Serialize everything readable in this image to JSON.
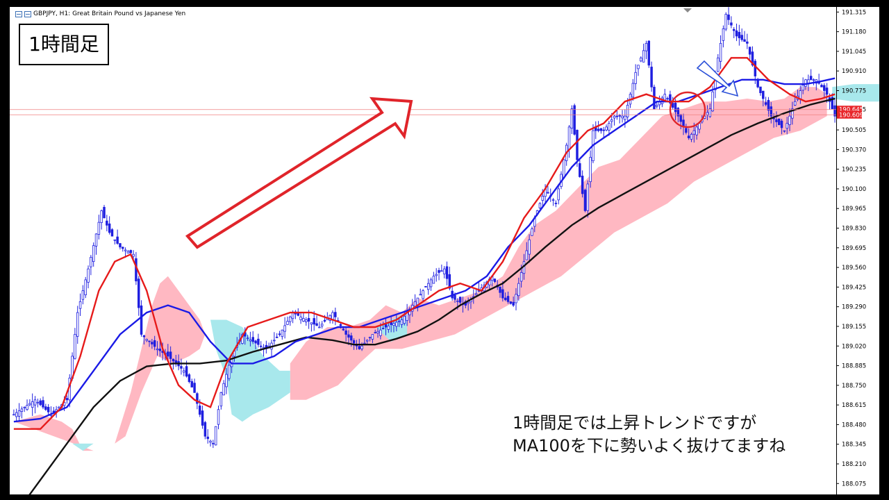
{
  "header": {
    "symbol_title": "GBPJPY, H1:  Great Britain Pound vs Japanese Yen"
  },
  "timeframe_label": "1時間足",
  "caption": {
    "line1": "1時間足では上昇トレンドですが",
    "line2": "MA100を下に勢いよく抜けてますね"
  },
  "chart_data": {
    "type": "candlestick",
    "title": "GBPJPY, H1:  Great Britain Pound vs Japanese Yen",
    "ylim": [
      188.0,
      191.35
    ],
    "y_ticks": [
      "191.315",
      "191.180",
      "191.045",
      "190.910",
      "190.775",
      "190.645",
      "190.505",
      "190.370",
      "190.235",
      "190.100",
      "189.965",
      "189.830",
      "189.695",
      "189.560",
      "189.425",
      "189.290",
      "189.155",
      "189.020",
      "188.885",
      "188.750",
      "188.615",
      "188.480",
      "188.345",
      "188.210",
      "188.075"
    ],
    "price_labels": [
      {
        "text": "190.645",
        "value": 190.645,
        "color": "#e8262a"
      },
      {
        "text": "190.609",
        "value": 190.609,
        "color": "#e8262a"
      }
    ],
    "candle_color_up": "#1f1fe0",
    "candle_color_down": "#1f1fe0",
    "price_keypoints": [
      [
        0,
        188.55
      ],
      [
        8,
        188.65
      ],
      [
        14,
        188.55
      ],
      [
        20,
        188.65
      ],
      [
        24,
        189.25
      ],
      [
        28,
        189.55
      ],
      [
        33,
        189.95
      ],
      [
        36,
        189.8
      ],
      [
        40,
        189.7
      ],
      [
        45,
        189.65
      ],
      [
        48,
        189.1
      ],
      [
        54,
        189.0
      ],
      [
        58,
        188.95
      ],
      [
        64,
        188.85
      ],
      [
        68,
        188.7
      ],
      [
        72,
        188.4
      ],
      [
        75,
        188.35
      ],
      [
        78,
        188.7
      ],
      [
        82,
        188.95
      ],
      [
        86,
        189.1
      ],
      [
        90,
        189.05
      ],
      [
        95,
        189.0
      ],
      [
        100,
        189.1
      ],
      [
        105,
        189.25
      ],
      [
        110,
        189.2
      ],
      [
        115,
        189.15
      ],
      [
        120,
        189.25
      ],
      [
        125,
        189.1
      ],
      [
        130,
        189.0
      ],
      [
        135,
        189.1
      ],
      [
        140,
        189.15
      ],
      [
        146,
        189.2
      ],
      [
        152,
        189.35
      ],
      [
        158,
        189.5
      ],
      [
        162,
        189.55
      ],
      [
        165,
        189.35
      ],
      [
        170,
        189.3
      ],
      [
        175,
        189.4
      ],
      [
        180,
        189.5
      ],
      [
        184,
        189.35
      ],
      [
        188,
        189.3
      ],
      [
        192,
        189.6
      ],
      [
        196,
        189.9
      ],
      [
        200,
        190.1
      ],
      [
        204,
        190.0
      ],
      [
        208,
        190.4
      ],
      [
        210,
        190.65
      ],
      [
        212,
        190.3
      ],
      [
        215,
        189.95
      ],
      [
        218,
        190.5
      ],
      [
        222,
        190.5
      ],
      [
        226,
        190.6
      ],
      [
        230,
        190.6
      ],
      [
        234,
        190.9
      ],
      [
        238,
        191.1
      ],
      [
        241,
        190.65
      ],
      [
        245,
        190.75
      ],
      [
        250,
        190.6
      ],
      [
        254,
        190.45
      ],
      [
        258,
        190.55
      ],
      [
        262,
        190.65
      ],
      [
        265,
        191.0
      ],
      [
        268,
        191.3
      ],
      [
        272,
        191.15
      ],
      [
        276,
        191.1
      ],
      [
        280,
        190.8
      ],
      [
        285,
        190.6
      ],
      [
        290,
        190.5
      ],
      [
        294,
        190.7
      ],
      [
        298,
        190.85
      ],
      [
        302,
        190.85
      ],
      [
        306,
        190.75
      ],
      [
        309,
        190.6
      ]
    ],
    "ma_red": [
      [
        0,
        188.45
      ],
      [
        10,
        188.45
      ],
      [
        18,
        188.6
      ],
      [
        25,
        188.95
      ],
      [
        32,
        189.4
      ],
      [
        38,
        189.6
      ],
      [
        44,
        189.65
      ],
      [
        50,
        189.4
      ],
      [
        56,
        189.0
      ],
      [
        62,
        188.75
      ],
      [
        68,
        188.65
      ],
      [
        74,
        188.6
      ],
      [
        80,
        188.9
      ],
      [
        88,
        189.15
      ],
      [
        96,
        189.2
      ],
      [
        104,
        189.25
      ],
      [
        112,
        189.25
      ],
      [
        120,
        189.2
      ],
      [
        128,
        189.15
      ],
      [
        136,
        189.15
      ],
      [
        144,
        189.2
      ],
      [
        152,
        189.3
      ],
      [
        160,
        189.4
      ],
      [
        168,
        189.45
      ],
      [
        176,
        189.4
      ],
      [
        184,
        189.6
      ],
      [
        192,
        189.9
      ],
      [
        200,
        190.1
      ],
      [
        208,
        190.35
      ],
      [
        216,
        190.5
      ],
      [
        222,
        190.55
      ],
      [
        230,
        190.7
      ],
      [
        238,
        190.75
      ],
      [
        246,
        190.7
      ],
      [
        254,
        190.7
      ],
      [
        262,
        190.8
      ],
      [
        270,
        191.0
      ],
      [
        276,
        191.0
      ],
      [
        284,
        190.85
      ],
      [
        292,
        190.75
      ],
      [
        298,
        190.7
      ],
      [
        304,
        190.72
      ],
      [
        309,
        190.75
      ]
    ],
    "ma_blue": [
      [
        0,
        188.5
      ],
      [
        10,
        188.52
      ],
      [
        20,
        188.6
      ],
      [
        30,
        188.85
      ],
      [
        40,
        189.1
      ],
      [
        50,
        189.25
      ],
      [
        58,
        189.3
      ],
      [
        66,
        189.25
      ],
      [
        74,
        189.05
      ],
      [
        82,
        188.9
      ],
      [
        90,
        188.9
      ],
      [
        98,
        188.95
      ],
      [
        106,
        189.05
      ],
      [
        114,
        189.1
      ],
      [
        122,
        189.15
      ],
      [
        130,
        189.15
      ],
      [
        138,
        189.2
      ],
      [
        146,
        189.25
      ],
      [
        154,
        189.3
      ],
      [
        162,
        189.35
      ],
      [
        170,
        189.4
      ],
      [
        178,
        189.5
      ],
      [
        186,
        189.7
      ],
      [
        194,
        189.85
      ],
      [
        202,
        190.05
      ],
      [
        210,
        190.25
      ],
      [
        218,
        190.4
      ],
      [
        226,
        190.5
      ],
      [
        234,
        190.6
      ],
      [
        242,
        190.7
      ],
      [
        250,
        190.7
      ],
      [
        258,
        190.75
      ],
      [
        266,
        190.8
      ],
      [
        274,
        190.85
      ],
      [
        282,
        190.85
      ],
      [
        290,
        190.82
      ],
      [
        298,
        190.82
      ],
      [
        304,
        190.84
      ],
      [
        309,
        190.86
      ]
    ],
    "ma_black_ma100": [
      [
        0,
        187.85
      ],
      [
        10,
        188.1
      ],
      [
        20,
        188.35
      ],
      [
        30,
        188.6
      ],
      [
        40,
        188.78
      ],
      [
        50,
        188.88
      ],
      [
        60,
        188.9
      ],
      [
        70,
        188.9
      ],
      [
        80,
        188.92
      ],
      [
        90,
        188.98
      ],
      [
        100,
        189.03
      ],
      [
        110,
        189.08
      ],
      [
        120,
        189.06
      ],
      [
        128,
        189.03
      ],
      [
        136,
        189.03
      ],
      [
        144,
        189.07
      ],
      [
        152,
        189.12
      ],
      [
        160,
        189.2
      ],
      [
        168,
        189.3
      ],
      [
        176,
        189.38
      ],
      [
        184,
        189.45
      ],
      [
        192,
        189.57
      ],
      [
        200,
        189.7
      ],
      [
        210,
        189.85
      ],
      [
        220,
        189.97
      ],
      [
        230,
        190.07
      ],
      [
        240,
        190.17
      ],
      [
        250,
        190.27
      ],
      [
        260,
        190.37
      ],
      [
        270,
        190.47
      ],
      [
        280,
        190.55
      ],
      [
        290,
        190.62
      ],
      [
        300,
        190.68
      ],
      [
        309,
        190.72
      ]
    ],
    "ichimoku_cloud_pink": [
      [
        [
          0,
          188.5
        ],
        [
          10,
          188.55
        ],
        [
          18,
          188.5
        ],
        [
          22,
          188.45
        ],
        [
          26,
          188.3
        ],
        [
          30,
          188.3
        ]
      ],
      [
        [
          38,
          188.35
        ],
        [
          44,
          188.7
        ],
        [
          48,
          189.0
        ],
        [
          52,
          189.3
        ],
        [
          55,
          189.45
        ],
        [
          58,
          189.5
        ],
        [
          62,
          189.4
        ],
        [
          66,
          189.3
        ],
        [
          70,
          189.2
        ],
        [
          72,
          189.1
        ],
        [
          70,
          189.0
        ],
        [
          66,
          188.95
        ],
        [
          60,
          188.9
        ],
        [
          54,
          188.95
        ],
        [
          48,
          188.7
        ],
        [
          42,
          188.4
        ],
        [
          38,
          188.35
        ]
      ],
      [
        [
          104,
          188.9
        ],
        [
          110,
          189.05
        ],
        [
          118,
          189.15
        ],
        [
          126,
          189.15
        ],
        [
          134,
          189.2
        ],
        [
          140,
          189.3
        ],
        [
          146,
          189.25
        ],
        [
          152,
          189.35
        ],
        [
          160,
          189.3
        ],
        [
          168,
          189.35
        ],
        [
          176,
          189.4
        ],
        [
          184,
          189.5
        ],
        [
          190,
          189.7
        ],
        [
          196,
          189.85
        ],
        [
          204,
          189.95
        ],
        [
          212,
          190.1
        ],
        [
          220,
          190.25
        ],
        [
          228,
          190.3
        ],
        [
          236,
          190.45
        ],
        [
          244,
          190.6
        ],
        [
          252,
          190.65
        ],
        [
          260,
          190.7
        ],
        [
          268,
          190.7
        ],
        [
          276,
          190.72
        ],
        [
          284,
          190.7
        ],
        [
          290,
          190.72
        ],
        [
          296,
          190.8
        ],
        [
          302,
          190.8
        ],
        [
          306,
          190.75
        ],
        [
          306,
          190.6
        ],
        [
          296,
          190.5
        ],
        [
          286,
          190.45
        ],
        [
          276,
          190.35
        ],
        [
          266,
          190.25
        ],
        [
          256,
          190.15
        ],
        [
          246,
          190.0
        ],
        [
          236,
          189.9
        ],
        [
          226,
          189.8
        ],
        [
          216,
          189.65
        ],
        [
          206,
          189.5
        ],
        [
          196,
          189.4
        ],
        [
          186,
          189.3
        ],
        [
          176,
          189.2
        ],
        [
          166,
          189.1
        ],
        [
          156,
          189.05
        ],
        [
          146,
          189.0
        ],
        [
          136,
          189.0
        ],
        [
          130,
          188.9
        ],
        [
          122,
          188.75
        ],
        [
          116,
          188.7
        ],
        [
          110,
          188.65
        ],
        [
          104,
          188.65
        ]
      ]
    ],
    "ichimoku_cloud_cyan": [
      [
        [
          22,
          188.35
        ],
        [
          26,
          188.3
        ],
        [
          30,
          188.35
        ]
      ],
      [
        [
          74,
          189.2
        ],
        [
          80,
          189.2
        ],
        [
          86,
          189.15
        ],
        [
          90,
          189.05
        ],
        [
          94,
          188.95
        ],
        [
          100,
          188.85
        ],
        [
          104,
          188.85
        ],
        [
          104,
          188.7
        ],
        [
          96,
          188.6
        ],
        [
          90,
          188.55
        ],
        [
          86,
          188.5
        ],
        [
          82,
          188.55
        ],
        [
          80,
          188.8
        ],
        [
          76,
          189.0
        ],
        [
          74,
          189.2
        ]
      ],
      [
        [
          136,
          189.15
        ],
        [
          142,
          189.2
        ],
        [
          148,
          189.25
        ],
        [
          148,
          189.1
        ],
        [
          142,
          189.05
        ]
      ],
      [
        [
          308,
          190.8
        ],
        [
          316,
          190.82
        ],
        [
          326,
          190.82
        ],
        [
          332,
          190.85
        ],
        [
          332,
          190.65
        ],
        [
          326,
          190.7
        ],
        [
          316,
          190.7
        ],
        [
          308,
          190.72
        ]
      ]
    ]
  }
}
